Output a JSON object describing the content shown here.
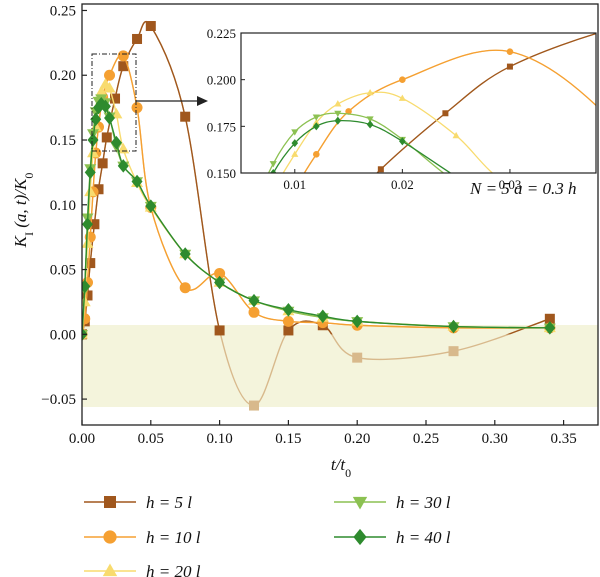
{
  "chart_data": {
    "type": "line",
    "xlabel": "t/t0",
    "ylabel": "KI (a, t)/K0",
    "xlim": [
      0,
      0.375
    ],
    "ylim": [
      -0.07,
      0.255
    ],
    "xticks": [
      "0.00",
      "0.05",
      "0.10",
      "0.15",
      "0.20",
      "0.25",
      "0.30",
      "0.35"
    ],
    "yticks": [
      "−0.05",
      "0.00",
      "0.05",
      "0.10",
      "0.15",
      "0.20",
      "0.25"
    ],
    "annotation": "N = 5  a = 0.3 h",
    "grid": false,
    "legend_position": "bottom",
    "negative_region_shading": "#f4f4dc",
    "series": [
      {
        "name": "h = 5 l",
        "color": "#a0571d",
        "faded_color": "#d8b98c",
        "marker": "square",
        "points": [
          [
            0.0,
            0.0
          ],
          [
            0.002,
            0.01
          ],
          [
            0.004,
            0.03
          ],
          [
            0.006,
            0.055
          ],
          [
            0.009,
            0.085
          ],
          [
            0.012,
            0.112
          ],
          [
            0.015,
            0.132
          ],
          [
            0.018,
            0.152
          ],
          [
            0.024,
            0.182
          ],
          [
            0.03,
            0.207
          ],
          [
            0.04,
            0.228
          ],
          [
            0.05,
            0.238
          ],
          [
            0.075,
            0.168
          ],
          [
            0.1,
            0.003
          ],
          [
            0.125,
            -0.055
          ],
          [
            0.15,
            0.003
          ],
          [
            0.175,
            0.007
          ],
          [
            0.2,
            -0.018
          ],
          [
            0.27,
            -0.013
          ],
          [
            0.34,
            0.012
          ]
        ]
      },
      {
        "name": "h = 10 l",
        "color": "#f5a032",
        "faded_color": "#f8cc8a",
        "marker": "circle",
        "points": [
          [
            0.0,
            0.0
          ],
          [
            0.002,
            0.012
          ],
          [
            0.004,
            0.04
          ],
          [
            0.006,
            0.075
          ],
          [
            0.008,
            0.11
          ],
          [
            0.01,
            0.14
          ],
          [
            0.012,
            0.16
          ],
          [
            0.015,
            0.183
          ],
          [
            0.02,
            0.2
          ],
          [
            0.03,
            0.215
          ],
          [
            0.04,
            0.175
          ],
          [
            0.05,
            0.098
          ],
          [
            0.075,
            0.036
          ],
          [
            0.1,
            0.047
          ],
          [
            0.125,
            0.017
          ],
          [
            0.15,
            0.01
          ],
          [
            0.175,
            0.009
          ],
          [
            0.2,
            0.007
          ],
          [
            0.27,
            0.005
          ],
          [
            0.34,
            0.005
          ]
        ]
      },
      {
        "name": "h = 20 l",
        "color": "#f8db6e",
        "marker": "triangle-up",
        "points": [
          [
            0.0,
            0.0
          ],
          [
            0.002,
            0.025
          ],
          [
            0.004,
            0.07
          ],
          [
            0.006,
            0.11
          ],
          [
            0.008,
            0.14
          ],
          [
            0.01,
            0.16
          ],
          [
            0.012,
            0.177
          ],
          [
            0.014,
            0.187
          ],
          [
            0.017,
            0.193
          ],
          [
            0.02,
            0.19
          ],
          [
            0.025,
            0.17
          ],
          [
            0.03,
            0.143
          ],
          [
            0.04,
            0.117
          ],
          [
            0.05,
            0.098
          ],
          [
            0.075,
            0.062
          ],
          [
            0.1,
            0.04
          ],
          [
            0.125,
            0.026
          ],
          [
            0.15,
            0.018
          ],
          [
            0.175,
            0.013
          ],
          [
            0.2,
            0.01
          ],
          [
            0.27,
            0.006
          ],
          [
            0.34,
            0.005
          ]
        ]
      },
      {
        "name": "h = 30 l",
        "color": "#8cc152",
        "marker": "triangle-down",
        "points": [
          [
            0.0,
            0.0
          ],
          [
            0.002,
            0.035
          ],
          [
            0.004,
            0.09
          ],
          [
            0.006,
            0.128
          ],
          [
            0.008,
            0.155
          ],
          [
            0.01,
            0.172
          ],
          [
            0.012,
            0.18
          ],
          [
            0.014,
            0.182
          ],
          [
            0.017,
            0.179
          ],
          [
            0.02,
            0.168
          ],
          [
            0.025,
            0.145
          ],
          [
            0.03,
            0.13
          ],
          [
            0.04,
            0.118
          ],
          [
            0.05,
            0.099
          ],
          [
            0.075,
            0.062
          ],
          [
            0.1,
            0.04
          ],
          [
            0.125,
            0.026
          ],
          [
            0.15,
            0.018
          ],
          [
            0.175,
            0.013
          ],
          [
            0.2,
            0.01
          ],
          [
            0.27,
            0.006
          ],
          [
            0.34,
            0.005
          ]
        ]
      },
      {
        "name": "h = 40 l",
        "color": "#2e8b2e",
        "marker": "diamond",
        "points": [
          [
            0.0,
            0.0
          ],
          [
            0.002,
            0.037
          ],
          [
            0.004,
            0.085
          ],
          [
            0.006,
            0.125
          ],
          [
            0.008,
            0.15
          ],
          [
            0.01,
            0.166
          ],
          [
            0.012,
            0.175
          ],
          [
            0.014,
            0.178
          ],
          [
            0.017,
            0.176
          ],
          [
            0.02,
            0.167
          ],
          [
            0.025,
            0.148
          ],
          [
            0.03,
            0.13
          ],
          [
            0.04,
            0.118
          ],
          [
            0.05,
            0.099
          ],
          [
            0.075,
            0.062
          ],
          [
            0.1,
            0.04
          ],
          [
            0.125,
            0.026
          ],
          [
            0.15,
            0.019
          ],
          [
            0.175,
            0.014
          ],
          [
            0.2,
            0.01
          ],
          [
            0.27,
            0.006
          ],
          [
            0.34,
            0.005
          ]
        ]
      }
    ],
    "inset": {
      "xlim": [
        0.005,
        0.038
      ],
      "ylim": [
        0.15,
        0.225
      ],
      "xticks": [
        "0.01",
        "0.02",
        "0.03"
      ],
      "yticks": [
        "0.150",
        "0.175",
        "0.200",
        "0.225"
      ]
    }
  }
}
